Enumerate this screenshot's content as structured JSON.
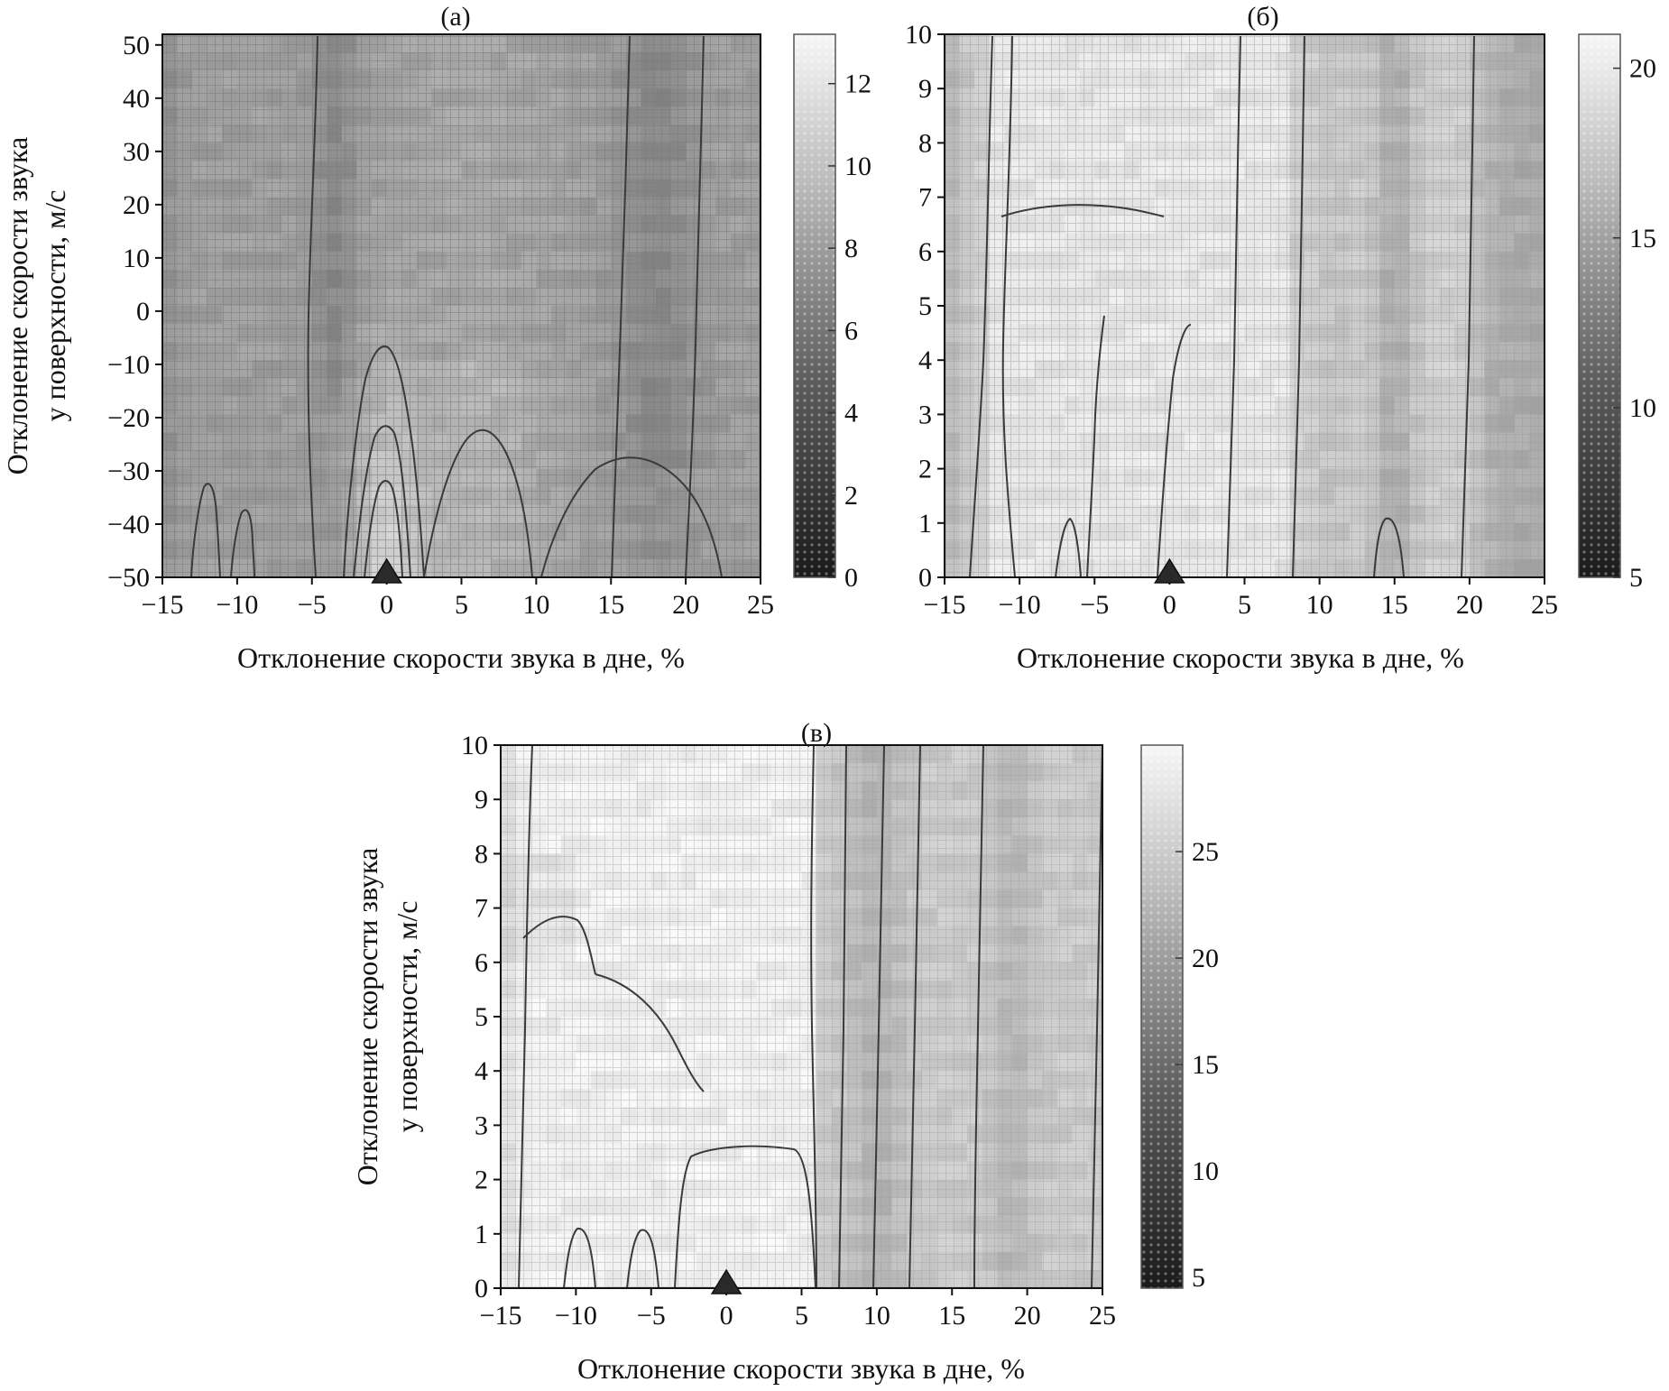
{
  "figure": {
    "panels": [
      {
        "id": "a",
        "panel_label": "(a)",
        "xlabel": "Отклонение скорости звука в дне, %",
        "ylabel_lines": [
          "Отклонение скорости звука",
          "у поверхности, м/с"
        ],
        "colorbar_ticks": [
          {
            "value": 0,
            "label": "0"
          },
          {
            "value": 2,
            "label": "2"
          },
          {
            "value": 4,
            "label": "4"
          },
          {
            "value": 6,
            "label": "6"
          },
          {
            "value": 8,
            "label": "8"
          },
          {
            "value": 10,
            "label": "10"
          },
          {
            "value": 12,
            "label": "12"
          }
        ],
        "marker": {
          "x": 0,
          "y": -50
        }
      },
      {
        "id": "b",
        "panel_label": "(б)",
        "xlabel": "Отклонение скорости звука в дне, %",
        "ylabel_lines": [],
        "colorbar_ticks": [
          {
            "value": 5,
            "label": "5"
          },
          {
            "value": 10,
            "label": "10"
          },
          {
            "value": 15,
            "label": "15"
          },
          {
            "value": 20,
            "label": "20"
          }
        ],
        "marker": {
          "x": 0,
          "y": 0
        }
      },
      {
        "id": "c",
        "panel_label": "(в)",
        "xlabel": "Отклонение скорости звука в дне, %",
        "ylabel_lines": [
          "Отклонение скорости звука",
          "у поверхности, м/с"
        ],
        "colorbar_ticks": [
          {
            "value": 5,
            "label": "5"
          },
          {
            "value": 10,
            "label": "10"
          },
          {
            "value": 15,
            "label": "15"
          },
          {
            "value": 20,
            "label": "20"
          },
          {
            "value": 25,
            "label": "25"
          }
        ],
        "marker": {
          "x": 0,
          "y": 0
        }
      }
    ]
  },
  "chart_data": [
    {
      "type": "heatmap",
      "title": "(a)",
      "xlabel": "Отклонение скорости звука в дне, %",
      "ylabel": "Отклонение скорости звука у поверхности, м/с",
      "xlim": [
        -15,
        25
      ],
      "ylim": [
        -50,
        52
      ],
      "x_ticks": [
        -15,
        -10,
        -5,
        0,
        5,
        10,
        15,
        20,
        25
      ],
      "y_ticks": [
        -50,
        -40,
        -30,
        -20,
        -10,
        0,
        10,
        20,
        30,
        40,
        50
      ],
      "colorbar": {
        "min": 0,
        "max": 13.2,
        "ticks": [
          0,
          2,
          4,
          6,
          8,
          10,
          12
        ],
        "colormap": "grayscale, dark = low, light = high"
      },
      "grid": true,
      "marker": {
        "shape": "triangle",
        "x": 0,
        "y": -50
      },
      "description": "Estimated field: brightest ridge (max ≈13) near x=0 at low y, broad lighter vertical bands between -3..15 %, darker stripes around x≈-4..-2 and x≈15..22"
    },
    {
      "type": "heatmap",
      "title": "(б)",
      "xlabel": "Отклонение скорости звука в дне, %",
      "ylabel": "",
      "xlim": [
        -15,
        25
      ],
      "ylim": [
        0,
        10
      ],
      "x_ticks": [
        -15,
        -10,
        -5,
        0,
        5,
        10,
        15,
        20,
        25
      ],
      "y_ticks": [
        0,
        1,
        2,
        3,
        4,
        5,
        6,
        7,
        8,
        9,
        10
      ],
      "colorbar": {
        "min": 5,
        "max": 21,
        "ticks": [
          5,
          10,
          15,
          20
        ],
        "colormap": "grayscale, dark = low, light = high"
      },
      "grid": true,
      "marker": {
        "shape": "triangle",
        "x": 0,
        "y": 0
      },
      "description": "Estimated field: bright region (≈20) for x between -12 and 8 %, darker vertical bands near x≈15 and x≈20..25"
    },
    {
      "type": "heatmap",
      "title": "(в)",
      "xlabel": "Отклонение скорости звука в дне, %",
      "ylabel": "Отклонение скорости звука у поверхности, м/с",
      "xlim": [
        -15,
        25
      ],
      "ylim": [
        0,
        10
      ],
      "x_ticks": [
        -15,
        -10,
        -5,
        0,
        5,
        10,
        15,
        20,
        25
      ],
      "y_ticks": [
        0,
        1,
        2,
        3,
        4,
        5,
        6,
        7,
        8,
        9,
        10
      ],
      "colorbar": {
        "min": 4.5,
        "max": 30,
        "ticks": [
          5,
          10,
          15,
          20,
          25
        ],
        "colormap": "grayscale, dark = low, light = high"
      },
      "grid": true,
      "marker": {
        "shape": "triangle",
        "x": 0,
        "y": 0
      },
      "description": "Estimated field: very bright region (≈28) for x between -14 and 6 %, intermediate gray for x > 6 % with darker bands near x≈8..12 and x≈18..20"
    }
  ]
}
